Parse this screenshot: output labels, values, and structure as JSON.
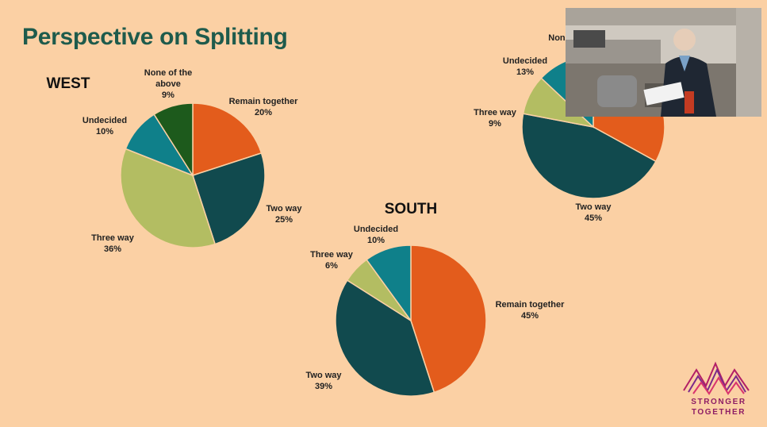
{
  "slide": {
    "title": "Perspective on Splitting"
  },
  "colors": {
    "remain_together": "#e35c1c",
    "two_way": "#114a4e",
    "three_way": "#b3bd62",
    "undecided": "#0f808a",
    "none_of_the_above": "#1d5a1c"
  },
  "chart_data": [
    {
      "type": "pie",
      "title": "WEST",
      "slices": [
        {
          "label": [
            "Remain together"
          ],
          "value": 20,
          "pct": "20%",
          "color_key": "remain_together"
        },
        {
          "label": [
            "Two way"
          ],
          "value": 25,
          "pct": "25%",
          "color_key": "two_way"
        },
        {
          "label": [
            "Three way"
          ],
          "value": 36,
          "pct": "36%",
          "color_key": "three_way"
        },
        {
          "label": [
            "Undecided"
          ],
          "value": 10,
          "pct": "10%",
          "color_key": "undecided"
        },
        {
          "label": [
            "None of the",
            "above"
          ],
          "value": 9,
          "pct": "9%",
          "color_key": "none_of_the_above"
        }
      ]
    },
    {
      "type": "pie",
      "title": "SOUTH",
      "slices": [
        {
          "label": [
            "Remain together"
          ],
          "value": 45,
          "pct": "45%",
          "color_key": "remain_together"
        },
        {
          "label": [
            "Two way"
          ],
          "value": 39,
          "pct": "39%",
          "color_key": "two_way"
        },
        {
          "label": [
            "Three way"
          ],
          "value": 6,
          "pct": "6%",
          "color_key": "three_way"
        },
        {
          "label": [
            "Undecided"
          ],
          "value": 10,
          "pct": "10%",
          "color_key": "undecided"
        }
      ]
    },
    {
      "type": "pie",
      "title": "",
      "slices": [
        {
          "label": [
            ""
          ],
          "value": 33,
          "pct": "",
          "color_key": "remain_together"
        },
        {
          "label": [
            "Two way"
          ],
          "value": 45,
          "pct": "45%",
          "color_key": "two_way"
        },
        {
          "label": [
            "Three way"
          ],
          "value": 9,
          "pct": "9%",
          "color_key": "three_way"
        },
        {
          "label": [
            "Undecided"
          ],
          "value": 13,
          "pct": "13%",
          "color_key": "undecided"
        },
        {
          "label": [
            "None"
          ],
          "value": 0,
          "pct": "",
          "color_key": "none_of_the_above"
        }
      ]
    }
  ],
  "logo": {
    "line1": "STRONGER",
    "line2": "TOGETHER"
  }
}
